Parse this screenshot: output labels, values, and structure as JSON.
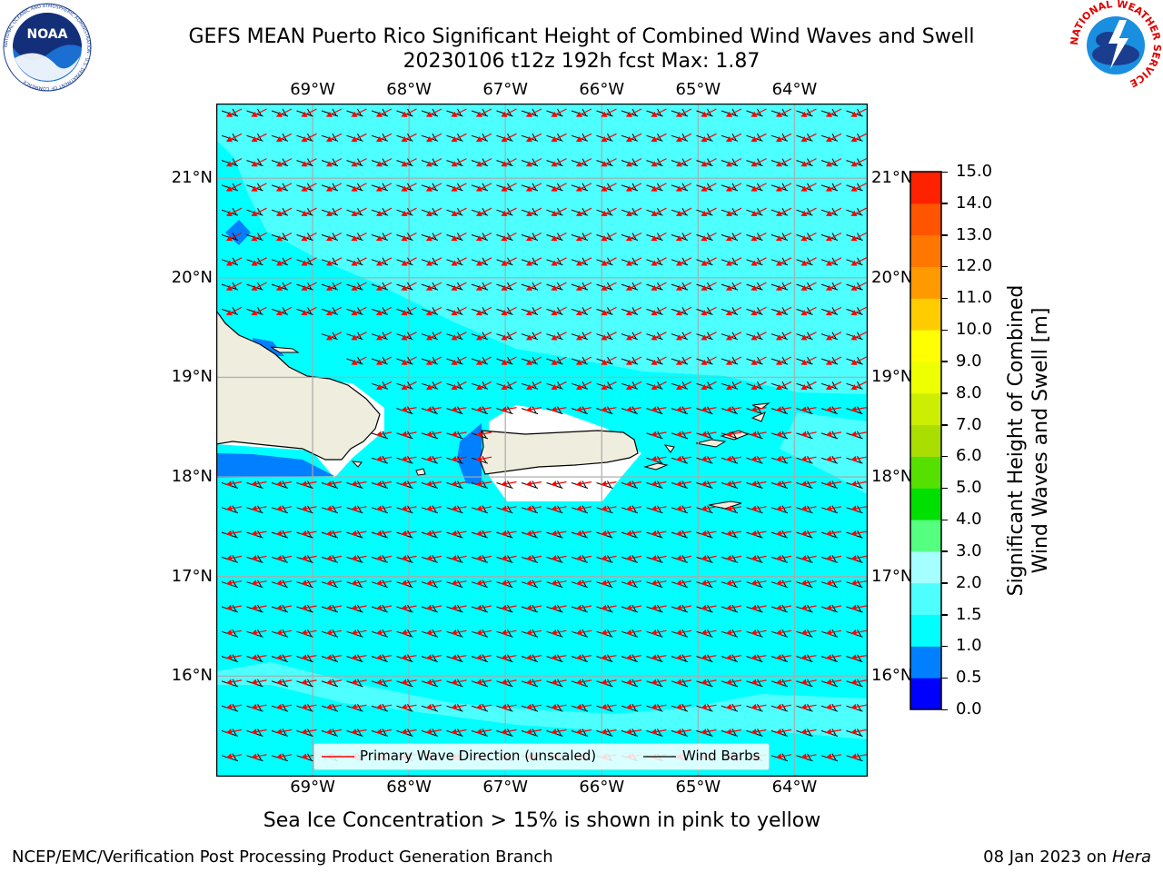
{
  "title": {
    "line1": "GEFS MEAN Puerto Rico Significant Height of Combined Wind Waves and Swell",
    "line2": "20230106 t12z 192h fcst   Max: 1.87"
  },
  "axes": {
    "lon_labels": [
      "69°W",
      "68°W",
      "67°W",
      "66°W",
      "65°W",
      "64°W"
    ],
    "lat_labels": [
      "21°N",
      "20°N",
      "19°N",
      "18°N",
      "17°N",
      "16°N"
    ],
    "lon_values": [
      -69,
      -68,
      -67,
      -66,
      -65,
      -64
    ],
    "lat_values": [
      21,
      20,
      19,
      18,
      17,
      16
    ],
    "lon_range": [
      -70,
      -63.25
    ],
    "lat_range": [
      15,
      21.75
    ]
  },
  "colorbar": {
    "label_line1": "Significant Height of Combined",
    "label_line2": "Wind Waves and Swell [m]",
    "ticks": [
      "0.0",
      "0.5",
      "1.0",
      "1.5",
      "2.0",
      "3.0",
      "4.0",
      "5.0",
      "6.0",
      "7.0",
      "8.0",
      "9.0",
      "10.0",
      "11.0",
      "12.0",
      "13.0",
      "14.0",
      "15.0"
    ],
    "colors": [
      "#0000ff",
      "#0080ff",
      "#00ffff",
      "#4dffff",
      "#a6ffff",
      "#55ff7f",
      "#00e000",
      "#55e000",
      "#aadd00",
      "#ccee00",
      "#eeff00",
      "#ffff00",
      "#ffcc00",
      "#ff9900",
      "#ff7700",
      "#ff5500",
      "#ff2200"
    ]
  },
  "legend": {
    "wave_label": "Primary Wave Direction (unscaled)",
    "wind_label": "Wind Barbs",
    "wave_color": "#ff0000",
    "wind_color": "#000000"
  },
  "map_colors": {
    "sea_base": "#00ffff",
    "sea_light": "#4dffff",
    "sea_shallow": "#0080ff",
    "land": "#efedde",
    "nodata": "#ffffff"
  },
  "subtitle": "Sea Ice Concentration > 15% is shown in pink to yellow",
  "footer": {
    "left": "NCEP/EMC/Verification Post Processing Product Generation Branch",
    "right_prefix": "08 Jan 2023 on ",
    "right_host": "Hera"
  },
  "logos": {
    "noaa": "NOAA",
    "noaa_ring": "NATIONAL OCEANIC AND ATMOSPHERIC ADMINISTRATION · U.S. DEPARTMENT OF COMMERCE",
    "nws_ring": "NATIONAL WEATHER SERVICE"
  }
}
